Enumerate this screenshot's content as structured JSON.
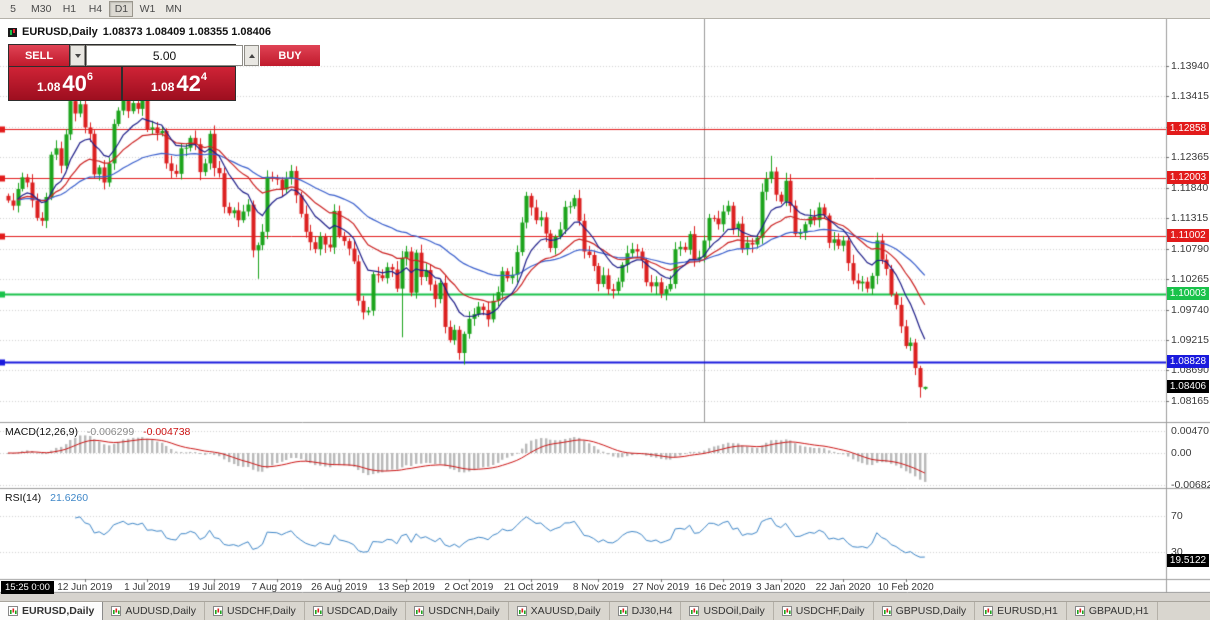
{
  "toolbar": {
    "timeframes": [
      {
        "label": "5",
        "active": false
      },
      {
        "label": "M30",
        "active": false
      },
      {
        "label": "H1",
        "active": false
      },
      {
        "label": "H4",
        "active": false
      },
      {
        "label": "D1",
        "active": true
      },
      {
        "label": "W1",
        "active": false
      },
      {
        "label": "MN",
        "active": false
      }
    ]
  },
  "chart_title": {
    "symbol": "EURUSD,Daily",
    "ohlc": "1.08373 1.08409 1.08355 1.08406"
  },
  "trade_panel": {
    "sell_label": "SELL",
    "buy_label": "BUY",
    "volume": "5.00",
    "sell_price": {
      "base": "1.08",
      "big": "40",
      "sup": "6"
    },
    "buy_price": {
      "base": "1.08",
      "big": "42",
      "sup": "4"
    }
  },
  "macd": {
    "label": "MACD(12,26,9)",
    "value": "-0.006299",
    "signal_value": "-0.004738",
    "params": {
      "fast": 12,
      "slow": 26,
      "signal": 9
    },
    "axis": {
      "top_value": 0.00642,
      "bottom_value": -0.00749,
      "ticks": [
        {
          "value": 0.0047,
          "label": "0.00470"
        },
        {
          "value": 0,
          "label": "0.00"
        },
        {
          "value": -0.00682,
          "label": "-0.00682"
        }
      ]
    },
    "colors": {
      "histogram": "#b9b9b9",
      "signal": "#cc1414"
    }
  },
  "rsi": {
    "label": "RSI(14)",
    "value": "21.6260",
    "period": 14,
    "current_badge": "19.5122",
    "levels": [
      {
        "value": 70,
        "label": "70"
      },
      {
        "value": 30,
        "label": "30"
      }
    ],
    "color": "#3f87c8"
  },
  "time_badge": "15:25 0:00",
  "tabs": [
    {
      "label": "EURUSD,Daily",
      "active": true
    },
    {
      "label": "AUDUSD,Daily",
      "active": false
    },
    {
      "label": "USDCHF,Daily",
      "active": false
    },
    {
      "label": "USDCAD,Daily",
      "active": false
    },
    {
      "label": "USDCNH,Daily",
      "active": false
    },
    {
      "label": "XAUUSD,Daily",
      "active": false
    },
    {
      "label": "DJ30,H4",
      "active": false
    },
    {
      "label": "USDOil,Daily",
      "active": false
    },
    {
      "label": "USDCHF,Daily",
      "active": false
    },
    {
      "label": "GBPUSD,Daily",
      "active": false
    },
    {
      "label": "EURUSD,H1",
      "active": false
    },
    {
      "label": "GBPAUD,H1",
      "active": false
    }
  ],
  "chart_data": {
    "type": "candlestick",
    "symbol": "EURUSD",
    "timeframe": "Daily",
    "current_bar": {
      "open": 1.08373,
      "high": 1.08409,
      "low": 1.08355,
      "close": 1.08406
    },
    "price_axis": {
      "top_value": 1.1475,
      "bottom_value": 1.078,
      "ticks": [
        "1.13940",
        "1.13415",
        "1.12890",
        "1.12365",
        "1.11840",
        "1.11315",
        "1.10790",
        "1.10265",
        "1.09740",
        "1.09215",
        "1.08690",
        "1.08165"
      ]
    },
    "levels": [
      {
        "value": 1.12858,
        "label": "1.12858",
        "color": "#e21b1b",
        "width": 1
      },
      {
        "value": 1.12003,
        "label": "1.12003",
        "color": "#e21b1b",
        "width": 1
      },
      {
        "value": 1.11002,
        "label": "1.11002",
        "color": "#e21b1b",
        "width": 1
      },
      {
        "value": 1.10003,
        "label": "1.10003",
        "color": "#19c24a",
        "width": 2
      },
      {
        "value": 1.08828,
        "label": "1.08828",
        "color": "#1919dd",
        "width": 2
      }
    ],
    "current_price_label": "1.08406",
    "colors": {
      "up": "#1ca41c",
      "down": "#dc2020",
      "background": "#ffffff",
      "grid": "#d2d2d2",
      "axis_text": "#3a3a3a",
      "vline": "#999999"
    },
    "moving_averages": [
      {
        "period": 45,
        "color": "#3a5fcd"
      },
      {
        "period": 21,
        "color": "#cc2222"
      },
      {
        "period": 10,
        "color": "#20208a"
      }
    ],
    "vline_index": 145,
    "first_open": 1.117,
    "closes": [
      1.1162,
      1.1153,
      1.1182,
      1.1202,
      1.1193,
      1.1162,
      1.1132,
      1.1127,
      1.1168,
      1.1241,
      1.1252,
      1.1222,
      1.1276,
      1.1334,
      1.1312,
      1.1328,
      1.1288,
      1.1277,
      1.1207,
      1.1219,
      1.1193,
      1.1226,
      1.1294,
      1.1317,
      1.134,
      1.1316,
      1.133,
      1.132,
      1.1337,
      1.1285,
      1.1288,
      1.1278,
      1.1282,
      1.1226,
      1.1213,
      1.1208,
      1.1252,
      1.1253,
      1.127,
      1.1259,
      1.1211,
      1.1226,
      1.1277,
      1.1218,
      1.1209,
      1.1151,
      1.114,
      1.1145,
      1.1128,
      1.1143,
      1.1155,
      1.1076,
      1.1085,
      1.1108,
      1.1203,
      1.12,
      1.1198,
      1.1181,
      1.1199,
      1.1213,
      1.1171,
      1.1139,
      1.1108,
      1.109,
      1.1078,
      1.11,
      1.1086,
      1.1081,
      1.1144,
      1.1101,
      1.1092,
      1.1079,
      1.1057,
      1.0989,
      1.0969,
      1.0972,
      1.1035,
      1.1033,
      1.1028,
      1.1047,
      1.1043,
      1.101,
      1.1063,
      1.1074,
      1.1003,
      1.1072,
      1.103,
      1.1042,
      1.1017,
      1.0992,
      1.102,
      1.0944,
      1.0921,
      1.0939,
      1.0899,
      1.0932,
      1.0958,
      1.0966,
      1.0979,
      1.0973,
      1.0957,
      1.0989,
      1.1004,
      1.104,
      1.1028,
      1.1034,
      1.1073,
      1.1124,
      1.117,
      1.115,
      1.1128,
      1.1133,
      1.1105,
      1.108,
      1.1099,
      1.1112,
      1.1151,
      1.1152,
      1.1166,
      1.1127,
      1.1074,
      1.1068,
      1.1049,
      1.1018,
      1.1033,
      1.1009,
      1.1006,
      1.1022,
      1.1051,
      1.1071,
      1.1078,
      1.1074,
      1.1059,
      1.1021,
      1.1014,
      1.1021,
      1.1001,
      1.1009,
      1.1018,
      1.1078,
      1.1082,
      1.1077,
      1.1104,
      1.106,
      1.1064,
      1.1093,
      1.1132,
      1.1131,
      1.1121,
      1.1143,
      1.1153,
      1.1113,
      1.1122,
      1.1078,
      1.1089,
      1.1086,
      1.1098,
      1.1177,
      1.1199,
      1.1212,
      1.1172,
      1.116,
      1.1196,
      1.1153,
      1.1104,
      1.1106,
      1.1121,
      1.1134,
      1.1128,
      1.115,
      1.1136,
      1.1089,
      1.1095,
      1.1084,
      1.1093,
      1.1054,
      1.1024,
      1.1019,
      1.1022,
      1.101,
      1.1032,
      1.1093,
      1.106,
      1.1044,
      1.1,
      1.0982,
      1.0945,
      1.0911,
      1.0917,
      1.0873,
      1.084,
      1.08406
    ],
    "wick_overrides": {
      "20": {
        "l": 1.1181
      },
      "24": {
        "h": 1.1348
      },
      "52": {
        "l": 1.1027
      },
      "82": {
        "l": 1.0926
      },
      "95": {
        "l": 1.0879
      },
      "159": {
        "h": 1.1239
      },
      "190": {
        "l": 1.0822
      }
    },
    "x_labels": [
      {
        "label": "12 Jun 2019",
        "index": 16
      },
      {
        "label": "1 Jul 2019",
        "index": 29
      },
      {
        "label": "19 Jul 2019",
        "index": 43
      },
      {
        "label": "7 Aug 2019",
        "index": 56
      },
      {
        "label": "26 Aug 2019",
        "index": 69
      },
      {
        "label": "13 Sep 2019",
        "index": 83
      },
      {
        "label": "2 Oct 2019",
        "index": 96
      },
      {
        "label": "21 Oct 2019",
        "index": 109
      },
      {
        "label": "8 Nov 2019",
        "index": 123
      },
      {
        "label": "27 Nov 2019",
        "index": 136
      },
      {
        "label": "16 Dec 2019",
        "index": 149
      },
      {
        "label": "3 Jan 2020",
        "index": 161
      },
      {
        "label": "22 Jan 2020",
        "index": 174
      },
      {
        "label": "10 Feb 2020",
        "index": 187
      }
    ]
  }
}
